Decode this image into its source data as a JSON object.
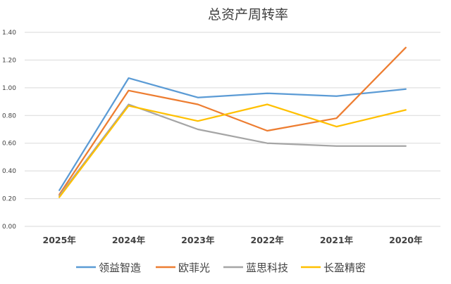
{
  "chart_data": {
    "type": "line",
    "title": "总资产周转率",
    "xlabel": "",
    "ylabel": "",
    "categories": [
      "2025年",
      "2024年",
      "2023年",
      "2022年",
      "2021年",
      "2020年"
    ],
    "ylim": [
      0,
      1.4
    ],
    "yticks": [
      "0.00",
      "0.20",
      "0.40",
      "0.60",
      "0.80",
      "1.00",
      "1.20",
      "1.40"
    ],
    "grid": true,
    "legend_position": "bottom",
    "series": [
      {
        "name": "领益智造",
        "color": "#5B9BD5",
        "values": [
          0.26,
          1.07,
          0.93,
          0.96,
          0.94,
          0.99
        ]
      },
      {
        "name": "欧菲光",
        "color": "#ED7D31",
        "values": [
          0.23,
          0.98,
          0.88,
          0.69,
          0.78,
          1.29
        ]
      },
      {
        "name": "蓝思科技",
        "color": "#A5A5A5",
        "values": [
          0.22,
          0.88,
          0.7,
          0.6,
          0.58,
          0.58
        ]
      },
      {
        "name": "长盈精密",
        "color": "#FFC000",
        "values": [
          0.21,
          0.87,
          0.76,
          0.88,
          0.72,
          0.84
        ]
      }
    ]
  }
}
